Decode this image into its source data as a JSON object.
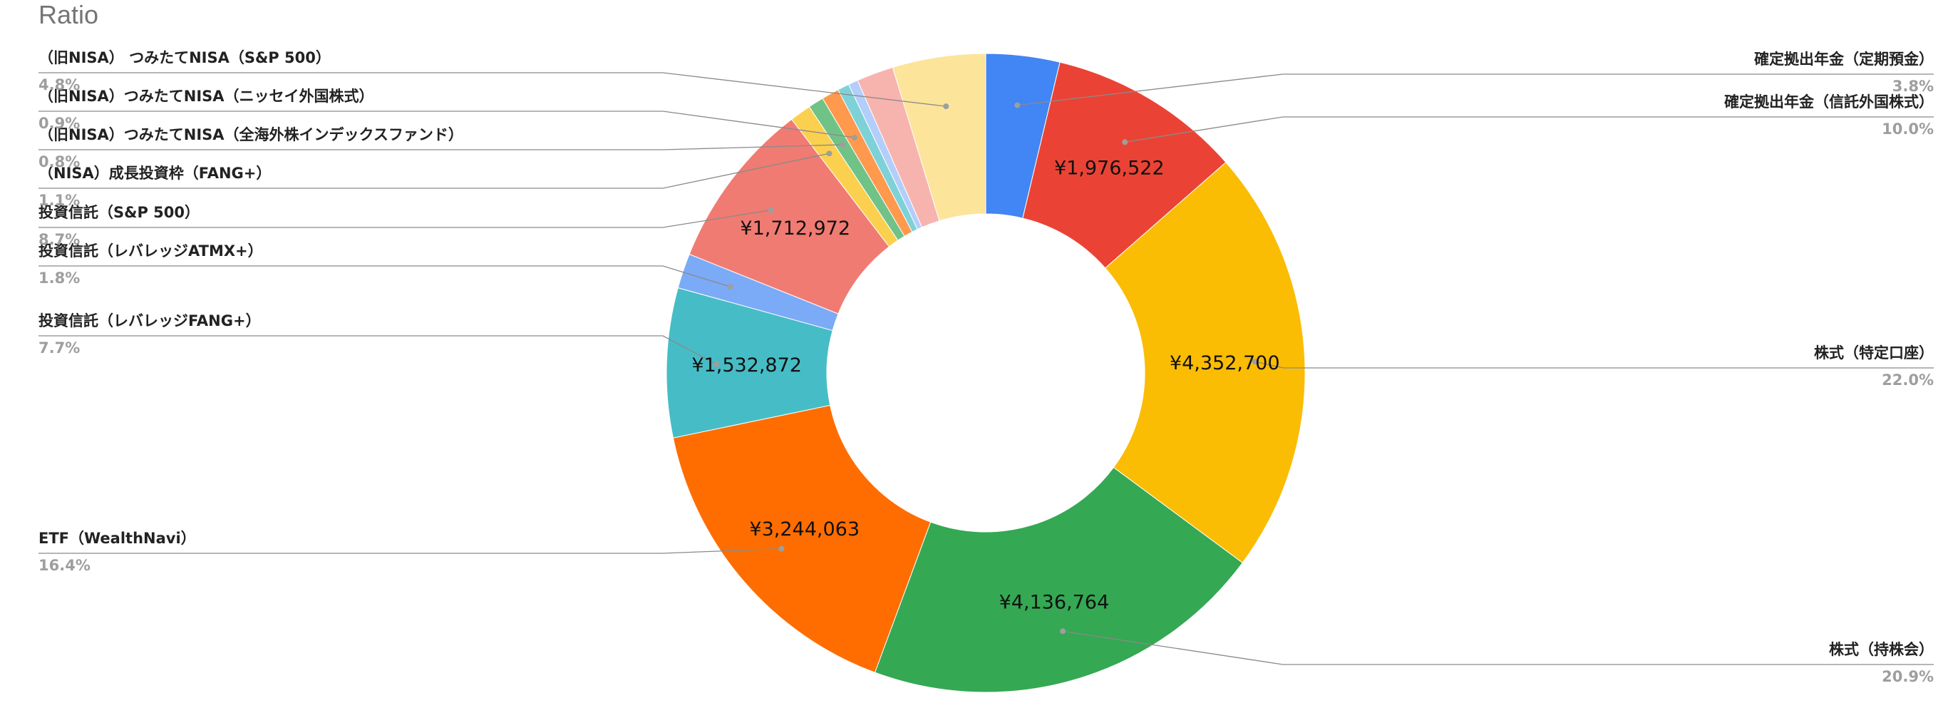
{
  "chart_data": {
    "type": "pie",
    "title": "Ratio",
    "donut": true,
    "legend": "leader-line labels",
    "slices": [
      {
        "name": "確定拠出年金（定期預金）",
        "percent": "3.8%",
        "share": 3.8,
        "color": "#4285f4",
        "value_label": ""
      },
      {
        "name": "確定拠出年金（信託外国株式）",
        "percent": "10.0%",
        "share": 10.0,
        "color": "#ea4335",
        "value_label": "¥1,976,522"
      },
      {
        "name": "株式（特定口座）",
        "percent": "22.0%",
        "share": 22.0,
        "color": "#fbbc04",
        "value_label": "¥4,352,700"
      },
      {
        "name": "株式（持株会）",
        "percent": "20.9%",
        "share": 20.9,
        "color": "#34a853",
        "value_label": "¥4,136,764"
      },
      {
        "name": "ETF（WealthNavi）",
        "percent": "16.4%",
        "share": 16.4,
        "color": "#ff6d01",
        "value_label": "¥3,244,063"
      },
      {
        "name": "投資信託（レバレッジFANG+）",
        "percent": "7.7%",
        "share": 7.7,
        "color": "#46bdc6",
        "value_label": "¥1,532,872"
      },
      {
        "name": "投資信託（レバレッジATMX+）",
        "percent": "1.8%",
        "share": 1.8,
        "color": "#7baaf7",
        "value_label": ""
      },
      {
        "name": "投資信託（S&P 500）",
        "percent": "8.7%",
        "share": 8.7,
        "color": "#f07b72",
        "value_label": "¥1,712,972"
      },
      {
        "name": "（NISA）成長投資枠（FANG+）",
        "percent": "1.1%",
        "share": 1.1,
        "color": "#fcd04f",
        "value_label": ""
      },
      {
        "name": "（旧NISA）つみたてNISA（全海外株インデックスファンド）",
        "percent": "0.8%",
        "share": 0.8,
        "color": "#71c287",
        "value_label": ""
      },
      {
        "name": "（旧NISA）つみたてNISA（ニッセイ外国株式）",
        "percent": "0.9%",
        "share": 0.9,
        "color": "#ff994d",
        "value_label": ""
      },
      {
        "name": "",
        "percent": "",
        "share": 0.6,
        "color": "#7ed1d7",
        "value_label": ""
      },
      {
        "name": "",
        "percent": "",
        "share": 0.5,
        "color": "#b3cefb",
        "value_label": ""
      },
      {
        "name": "",
        "percent": "",
        "share": 1.9,
        "color": "#f7b4ae",
        "value_label": ""
      },
      {
        "name": "（旧NISA） つみたてNISA（S&P 500）",
        "percent": "4.8%",
        "share": 4.8,
        "color": "#fde49b",
        "value_label": ""
      }
    ]
  }
}
